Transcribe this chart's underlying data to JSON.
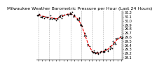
{
  "title": "Milwaukee Weather Barometric Pressure per Hour (Last 24 Hours)",
  "line_color": "#ff0000",
  "marker_color": "#000000",
  "background_color": "#ffffff",
  "plot_bg_color": "#ffffff",
  "grid_color": "#aaaaaa",
  "ylim": [
    29.05,
    30.25
  ],
  "yticks": [
    29.1,
    29.2,
    29.3,
    29.4,
    29.5,
    29.6,
    29.7,
    29.8,
    29.9,
    30.0,
    30.1,
    30.2
  ],
  "hours": [
    0,
    1,
    2,
    3,
    4,
    5,
    6,
    7,
    8,
    9,
    10,
    11,
    12,
    13,
    14,
    15,
    16,
    17,
    18,
    19,
    20,
    21,
    22,
    23
  ],
  "pressure": [
    30.15,
    30.12,
    30.1,
    30.08,
    30.07,
    30.05,
    30.1,
    30.13,
    30.16,
    30.18,
    30.12,
    30.05,
    29.9,
    29.65,
    29.4,
    29.25,
    29.2,
    29.22,
    29.25,
    29.28,
    29.35,
    29.45,
    29.55,
    29.6
  ],
  "vgrid_positions": [
    0,
    3,
    6,
    9,
    12,
    15,
    18,
    21,
    23
  ],
  "title_fontsize": 4.5,
  "tick_fontsize": 3.5,
  "line_width": 0.8,
  "marker_size": 1.5
}
